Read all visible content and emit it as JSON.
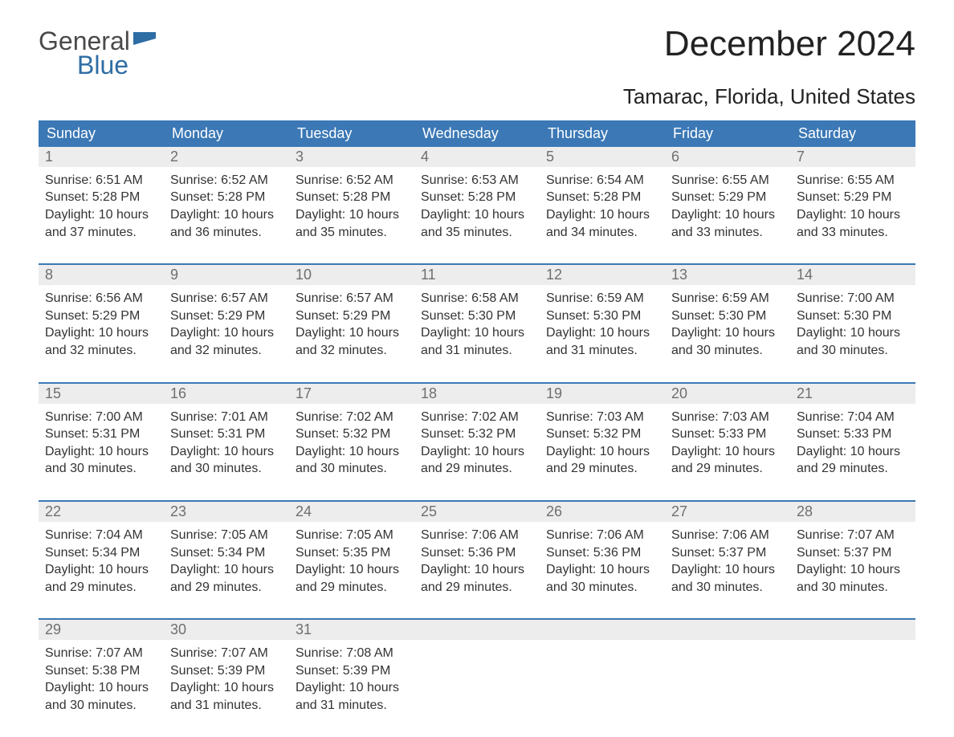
{
  "logo": {
    "line1": "General",
    "line2": "Blue"
  },
  "title": "December 2024",
  "subtitle": "Tamarac, Florida, United States",
  "colors": {
    "header_bg": "#3b78b5",
    "header_text": "#ffffff",
    "daynum_bg": "#ededed",
    "daynum_text": "#6f6f6f",
    "body_text": "#333333",
    "week_border": "#3b78b5",
    "page_bg": "#ffffff",
    "logo_blue": "#2e6da4",
    "logo_dark": "#4a4a4a"
  },
  "typography": {
    "title_fontsize": 44,
    "subtitle_fontsize": 26,
    "header_fontsize": 18,
    "daynum_fontsize": 18,
    "body_fontsize": 16
  },
  "weekday_headers": [
    "Sunday",
    "Monday",
    "Tuesday",
    "Wednesday",
    "Thursday",
    "Friday",
    "Saturday"
  ],
  "weeks": [
    {
      "days": [
        {
          "n": "1",
          "sr": "Sunrise: 6:51 AM",
          "ss": "Sunset: 5:28 PM",
          "d1": "Daylight: 10 hours",
          "d2": "and 37 minutes."
        },
        {
          "n": "2",
          "sr": "Sunrise: 6:52 AM",
          "ss": "Sunset: 5:28 PM",
          "d1": "Daylight: 10 hours",
          "d2": "and 36 minutes."
        },
        {
          "n": "3",
          "sr": "Sunrise: 6:52 AM",
          "ss": "Sunset: 5:28 PM",
          "d1": "Daylight: 10 hours",
          "d2": "and 35 minutes."
        },
        {
          "n": "4",
          "sr": "Sunrise: 6:53 AM",
          "ss": "Sunset: 5:28 PM",
          "d1": "Daylight: 10 hours",
          "d2": "and 35 minutes."
        },
        {
          "n": "5",
          "sr": "Sunrise: 6:54 AM",
          "ss": "Sunset: 5:28 PM",
          "d1": "Daylight: 10 hours",
          "d2": "and 34 minutes."
        },
        {
          "n": "6",
          "sr": "Sunrise: 6:55 AM",
          "ss": "Sunset: 5:29 PM",
          "d1": "Daylight: 10 hours",
          "d2": "and 33 minutes."
        },
        {
          "n": "7",
          "sr": "Sunrise: 6:55 AM",
          "ss": "Sunset: 5:29 PM",
          "d1": "Daylight: 10 hours",
          "d2": "and 33 minutes."
        }
      ]
    },
    {
      "days": [
        {
          "n": "8",
          "sr": "Sunrise: 6:56 AM",
          "ss": "Sunset: 5:29 PM",
          "d1": "Daylight: 10 hours",
          "d2": "and 32 minutes."
        },
        {
          "n": "9",
          "sr": "Sunrise: 6:57 AM",
          "ss": "Sunset: 5:29 PM",
          "d1": "Daylight: 10 hours",
          "d2": "and 32 minutes."
        },
        {
          "n": "10",
          "sr": "Sunrise: 6:57 AM",
          "ss": "Sunset: 5:29 PM",
          "d1": "Daylight: 10 hours",
          "d2": "and 32 minutes."
        },
        {
          "n": "11",
          "sr": "Sunrise: 6:58 AM",
          "ss": "Sunset: 5:30 PM",
          "d1": "Daylight: 10 hours",
          "d2": "and 31 minutes."
        },
        {
          "n": "12",
          "sr": "Sunrise: 6:59 AM",
          "ss": "Sunset: 5:30 PM",
          "d1": "Daylight: 10 hours",
          "d2": "and 31 minutes."
        },
        {
          "n": "13",
          "sr": "Sunrise: 6:59 AM",
          "ss": "Sunset: 5:30 PM",
          "d1": "Daylight: 10 hours",
          "d2": "and 30 minutes."
        },
        {
          "n": "14",
          "sr": "Sunrise: 7:00 AM",
          "ss": "Sunset: 5:30 PM",
          "d1": "Daylight: 10 hours",
          "d2": "and 30 minutes."
        }
      ]
    },
    {
      "days": [
        {
          "n": "15",
          "sr": "Sunrise: 7:00 AM",
          "ss": "Sunset: 5:31 PM",
          "d1": "Daylight: 10 hours",
          "d2": "and 30 minutes."
        },
        {
          "n": "16",
          "sr": "Sunrise: 7:01 AM",
          "ss": "Sunset: 5:31 PM",
          "d1": "Daylight: 10 hours",
          "d2": "and 30 minutes."
        },
        {
          "n": "17",
          "sr": "Sunrise: 7:02 AM",
          "ss": "Sunset: 5:32 PM",
          "d1": "Daylight: 10 hours",
          "d2": "and 30 minutes."
        },
        {
          "n": "18",
          "sr": "Sunrise: 7:02 AM",
          "ss": "Sunset: 5:32 PM",
          "d1": "Daylight: 10 hours",
          "d2": "and 29 minutes."
        },
        {
          "n": "19",
          "sr": "Sunrise: 7:03 AM",
          "ss": "Sunset: 5:32 PM",
          "d1": "Daylight: 10 hours",
          "d2": "and 29 minutes."
        },
        {
          "n": "20",
          "sr": "Sunrise: 7:03 AM",
          "ss": "Sunset: 5:33 PM",
          "d1": "Daylight: 10 hours",
          "d2": "and 29 minutes."
        },
        {
          "n": "21",
          "sr": "Sunrise: 7:04 AM",
          "ss": "Sunset: 5:33 PM",
          "d1": "Daylight: 10 hours",
          "d2": "and 29 minutes."
        }
      ]
    },
    {
      "days": [
        {
          "n": "22",
          "sr": "Sunrise: 7:04 AM",
          "ss": "Sunset: 5:34 PM",
          "d1": "Daylight: 10 hours",
          "d2": "and 29 minutes."
        },
        {
          "n": "23",
          "sr": "Sunrise: 7:05 AM",
          "ss": "Sunset: 5:34 PM",
          "d1": "Daylight: 10 hours",
          "d2": "and 29 minutes."
        },
        {
          "n": "24",
          "sr": "Sunrise: 7:05 AM",
          "ss": "Sunset: 5:35 PM",
          "d1": "Daylight: 10 hours",
          "d2": "and 29 minutes."
        },
        {
          "n": "25",
          "sr": "Sunrise: 7:06 AM",
          "ss": "Sunset: 5:36 PM",
          "d1": "Daylight: 10 hours",
          "d2": "and 29 minutes."
        },
        {
          "n": "26",
          "sr": "Sunrise: 7:06 AM",
          "ss": "Sunset: 5:36 PM",
          "d1": "Daylight: 10 hours",
          "d2": "and 30 minutes."
        },
        {
          "n": "27",
          "sr": "Sunrise: 7:06 AM",
          "ss": "Sunset: 5:37 PM",
          "d1": "Daylight: 10 hours",
          "d2": "and 30 minutes."
        },
        {
          "n": "28",
          "sr": "Sunrise: 7:07 AM",
          "ss": "Sunset: 5:37 PM",
          "d1": "Daylight: 10 hours",
          "d2": "and 30 minutes."
        }
      ]
    },
    {
      "days": [
        {
          "n": "29",
          "sr": "Sunrise: 7:07 AM",
          "ss": "Sunset: 5:38 PM",
          "d1": "Daylight: 10 hours",
          "d2": "and 30 minutes."
        },
        {
          "n": "30",
          "sr": "Sunrise: 7:07 AM",
          "ss": "Sunset: 5:39 PM",
          "d1": "Daylight: 10 hours",
          "d2": "and 31 minutes."
        },
        {
          "n": "31",
          "sr": "Sunrise: 7:08 AM",
          "ss": "Sunset: 5:39 PM",
          "d1": "Daylight: 10 hours",
          "d2": "and 31 minutes."
        },
        {
          "empty": true
        },
        {
          "empty": true
        },
        {
          "empty": true
        },
        {
          "empty": true
        }
      ]
    }
  ]
}
